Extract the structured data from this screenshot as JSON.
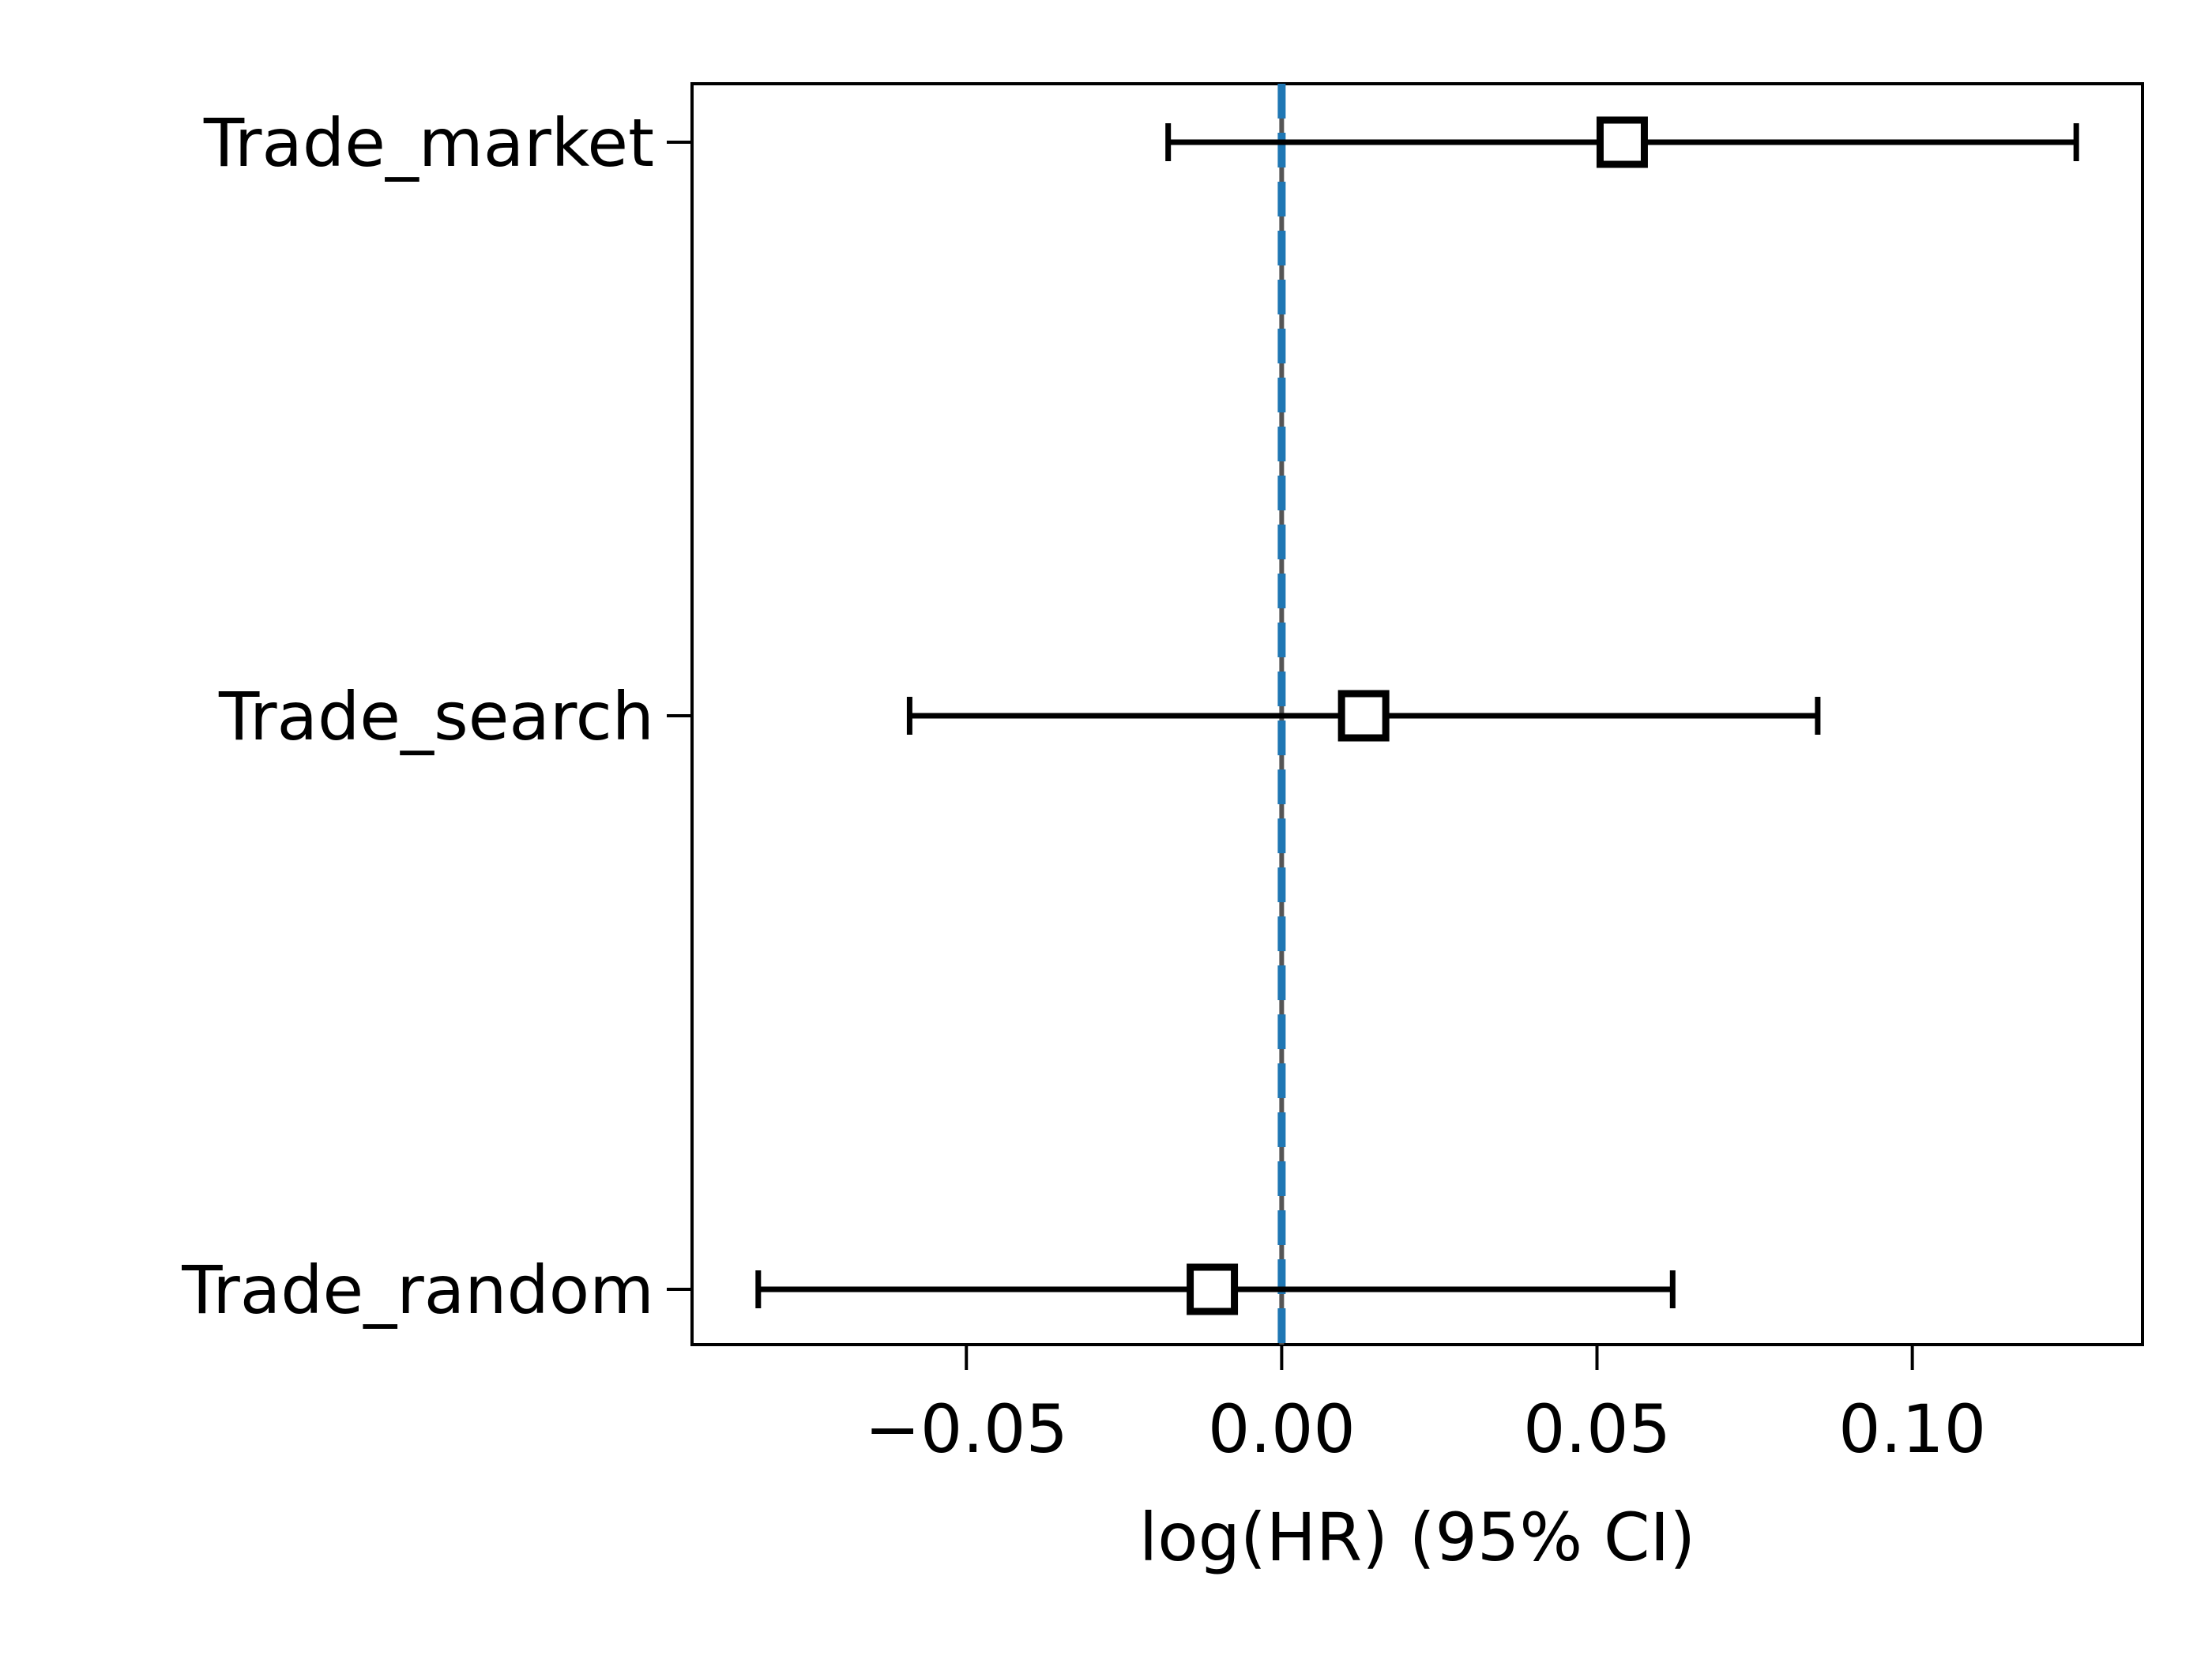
{
  "chart_data": {
    "type": "forest",
    "xlabel": "log(HR) (95% CI)",
    "xlim": [
      -0.0935,
      0.1365
    ],
    "xticks": [
      -0.05,
      0.0,
      0.05,
      0.1
    ],
    "xtick_labels": [
      "−0.05",
      "0.00",
      "0.05",
      "0.10"
    ],
    "grid": false,
    "reference_line": {
      "x": 0.0,
      "style": "dashed",
      "color": "#1f77b4"
    },
    "rows": [
      {
        "label": "Trade_market",
        "estimate": 0.054,
        "lower": -0.018,
        "upper": 0.126
      },
      {
        "label": "Trade_search",
        "estimate": 0.013,
        "lower": -0.059,
        "upper": 0.085
      },
      {
        "label": "Trade_random",
        "estimate": -0.011,
        "lower": -0.083,
        "upper": 0.062
      }
    ],
    "colors": {
      "axes": "#000000",
      "interval": "#000000",
      "marker_edge": "#000000",
      "marker_fill": "#ffffff",
      "reference_line": "#1f77b4",
      "reference_line_under": "#555555"
    }
  }
}
